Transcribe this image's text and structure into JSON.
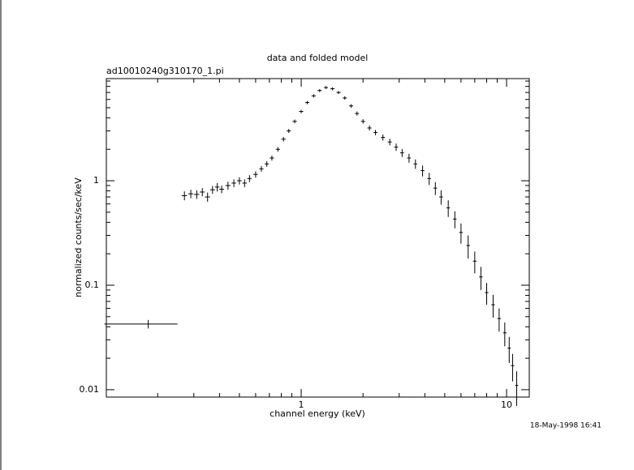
{
  "chart_data": {
    "type": "scatter",
    "title": "data and folded model",
    "subtitle": "ad10010240g310170_1.pi",
    "x_label": "channel energy (keV)",
    "y_label": "normalized counts/sec/keV",
    "timestamp": "18-May-1998 16:41",
    "xlog": true,
    "ylog": true,
    "color": "#000000",
    "xlim": [
      0.1125,
      12.9
    ],
    "ylim": [
      0.0085,
      9.5
    ],
    "xticks": [
      1,
      10
    ],
    "yticks": [
      0.01,
      0.1,
      1
    ],
    "xminorticks": [
      0.2,
      0.3,
      0.4,
      0.5,
      0.6,
      0.7,
      0.8,
      0.9,
      2,
      3,
      4,
      5,
      6,
      7,
      8,
      9
    ],
    "yminorticks": [
      0.02,
      0.03,
      0.04,
      0.05,
      0.06,
      0.07,
      0.08,
      0.09,
      0.2,
      0.3,
      0.4,
      0.5,
      0.6,
      0.7,
      0.8,
      0.9,
      2,
      3,
      4,
      5,
      6,
      7,
      8,
      9
    ],
    "x": [
      0.18,
      0.27,
      0.29,
      0.31,
      0.33,
      0.35,
      0.37,
      0.39,
      0.41,
      0.44,
      0.47,
      0.5,
      0.53,
      0.56,
      0.6,
      0.64,
      0.68,
      0.72,
      0.77,
      0.82,
      0.87,
      0.93,
      1.0,
      1.07,
      1.15,
      1.23,
      1.32,
      1.42,
      1.52,
      1.63,
      1.75,
      1.87,
      2.0,
      2.15,
      2.3,
      2.5,
      2.7,
      2.9,
      3.1,
      3.35,
      3.6,
      3.9,
      4.2,
      4.5,
      4.8,
      5.2,
      5.6,
      6.0,
      6.5,
      7.0,
      7.5,
      8.0,
      8.6,
      9.2,
      9.8,
      10.3,
      10.7,
      11.2
    ],
    "values": [
      0.0425,
      0.72,
      0.75,
      0.74,
      0.78,
      0.7,
      0.82,
      0.87,
      0.83,
      0.9,
      0.95,
      1.0,
      0.95,
      1.05,
      1.15,
      1.3,
      1.45,
      1.65,
      2.0,
      2.5,
      3.0,
      3.7,
      4.6,
      5.6,
      6.5,
      7.3,
      7.8,
      7.6,
      7.0,
      6.2,
      5.2,
      4.4,
      3.7,
      3.2,
      2.9,
      2.6,
      2.35,
      2.1,
      1.85,
      1.65,
      1.45,
      1.25,
      1.05,
      0.85,
      0.7,
      0.55,
      0.43,
      0.32,
      0.24,
      0.17,
      0.12,
      0.085,
      0.065,
      0.048,
      0.035,
      0.025,
      0.017,
      0.011
    ],
    "xerr": [
      0.07,
      0.008,
      0.008,
      0.009,
      0.009,
      0.01,
      0.01,
      0.01,
      0.011,
      0.012,
      0.012,
      0.013,
      0.013,
      0.014,
      0.015,
      0.015,
      0.016,
      0.017,
      0.018,
      0.02,
      0.02,
      0.022,
      0.024,
      0.025,
      0.027,
      0.029,
      0.03,
      0.032,
      0.035,
      0.037,
      0.04,
      0.042,
      0.045,
      0.05,
      0.05,
      0.055,
      0.06,
      0.06,
      0.065,
      0.07,
      0.075,
      0.08,
      0.085,
      0.09,
      0.1,
      0.1,
      0.11,
      0.12,
      0.13,
      0.14,
      0.15,
      0.16,
      0.17,
      0.18,
      0.19,
      0.2,
      0.2,
      0.2
    ],
    "yerr": [
      0.004,
      0.07,
      0.07,
      0.07,
      0.07,
      0.07,
      0.07,
      0.08,
      0.07,
      0.08,
      0.08,
      0.08,
      0.08,
      0.08,
      0.08,
      0.08,
      0.09,
      0.09,
      0.1,
      0.12,
      0.13,
      0.15,
      0.17,
      0.2,
      0.22,
      0.24,
      0.25,
      0.25,
      0.24,
      0.22,
      0.2,
      0.2,
      0.18,
      0.18,
      0.17,
      0.17,
      0.17,
      0.17,
      0.16,
      0.16,
      0.15,
      0.15,
      0.14,
      0.12,
      0.11,
      0.1,
      0.08,
      0.07,
      0.06,
      0.04,
      0.03,
      0.02,
      0.016,
      0.012,
      0.009,
      0.007,
      0.005,
      0.004
    ]
  }
}
